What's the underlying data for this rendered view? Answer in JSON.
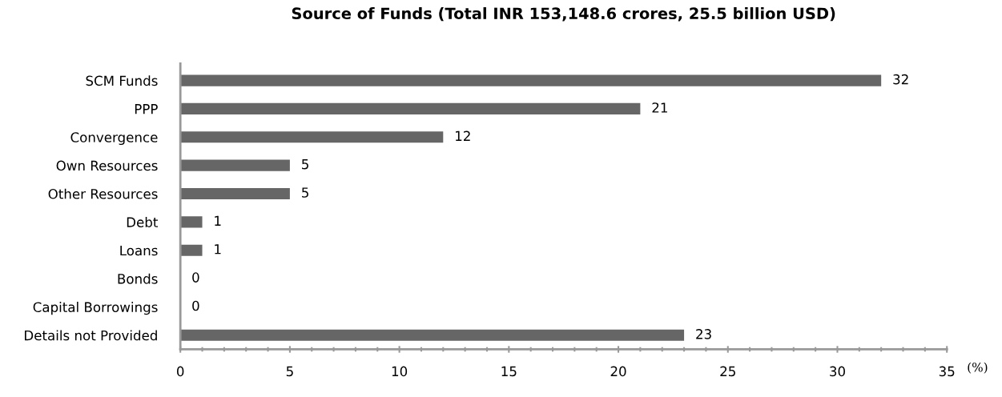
{
  "chart_data": {
    "type": "bar",
    "orientation": "horizontal",
    "title": "Source of Funds (Total INR 153,148.6 crores, 25.5 billion USD)",
    "xlabel": "(%)",
    "categories": [
      "SCM Funds",
      "PPP",
      "Convergence",
      "Own Resources",
      "Other Resources",
      "Debt",
      "Loans",
      "Bonds",
      "Capital Borrowings",
      "Details not Provided"
    ],
    "values": [
      32,
      21,
      12,
      5,
      5,
      1,
      1,
      0,
      0,
      23
    ],
    "color": "#666666",
    "xlim": [
      0,
      35
    ],
    "xticks": [
      0,
      5,
      10,
      15,
      20,
      25,
      30,
      35
    ],
    "data_labels": true,
    "grid": false,
    "legend": false
  }
}
